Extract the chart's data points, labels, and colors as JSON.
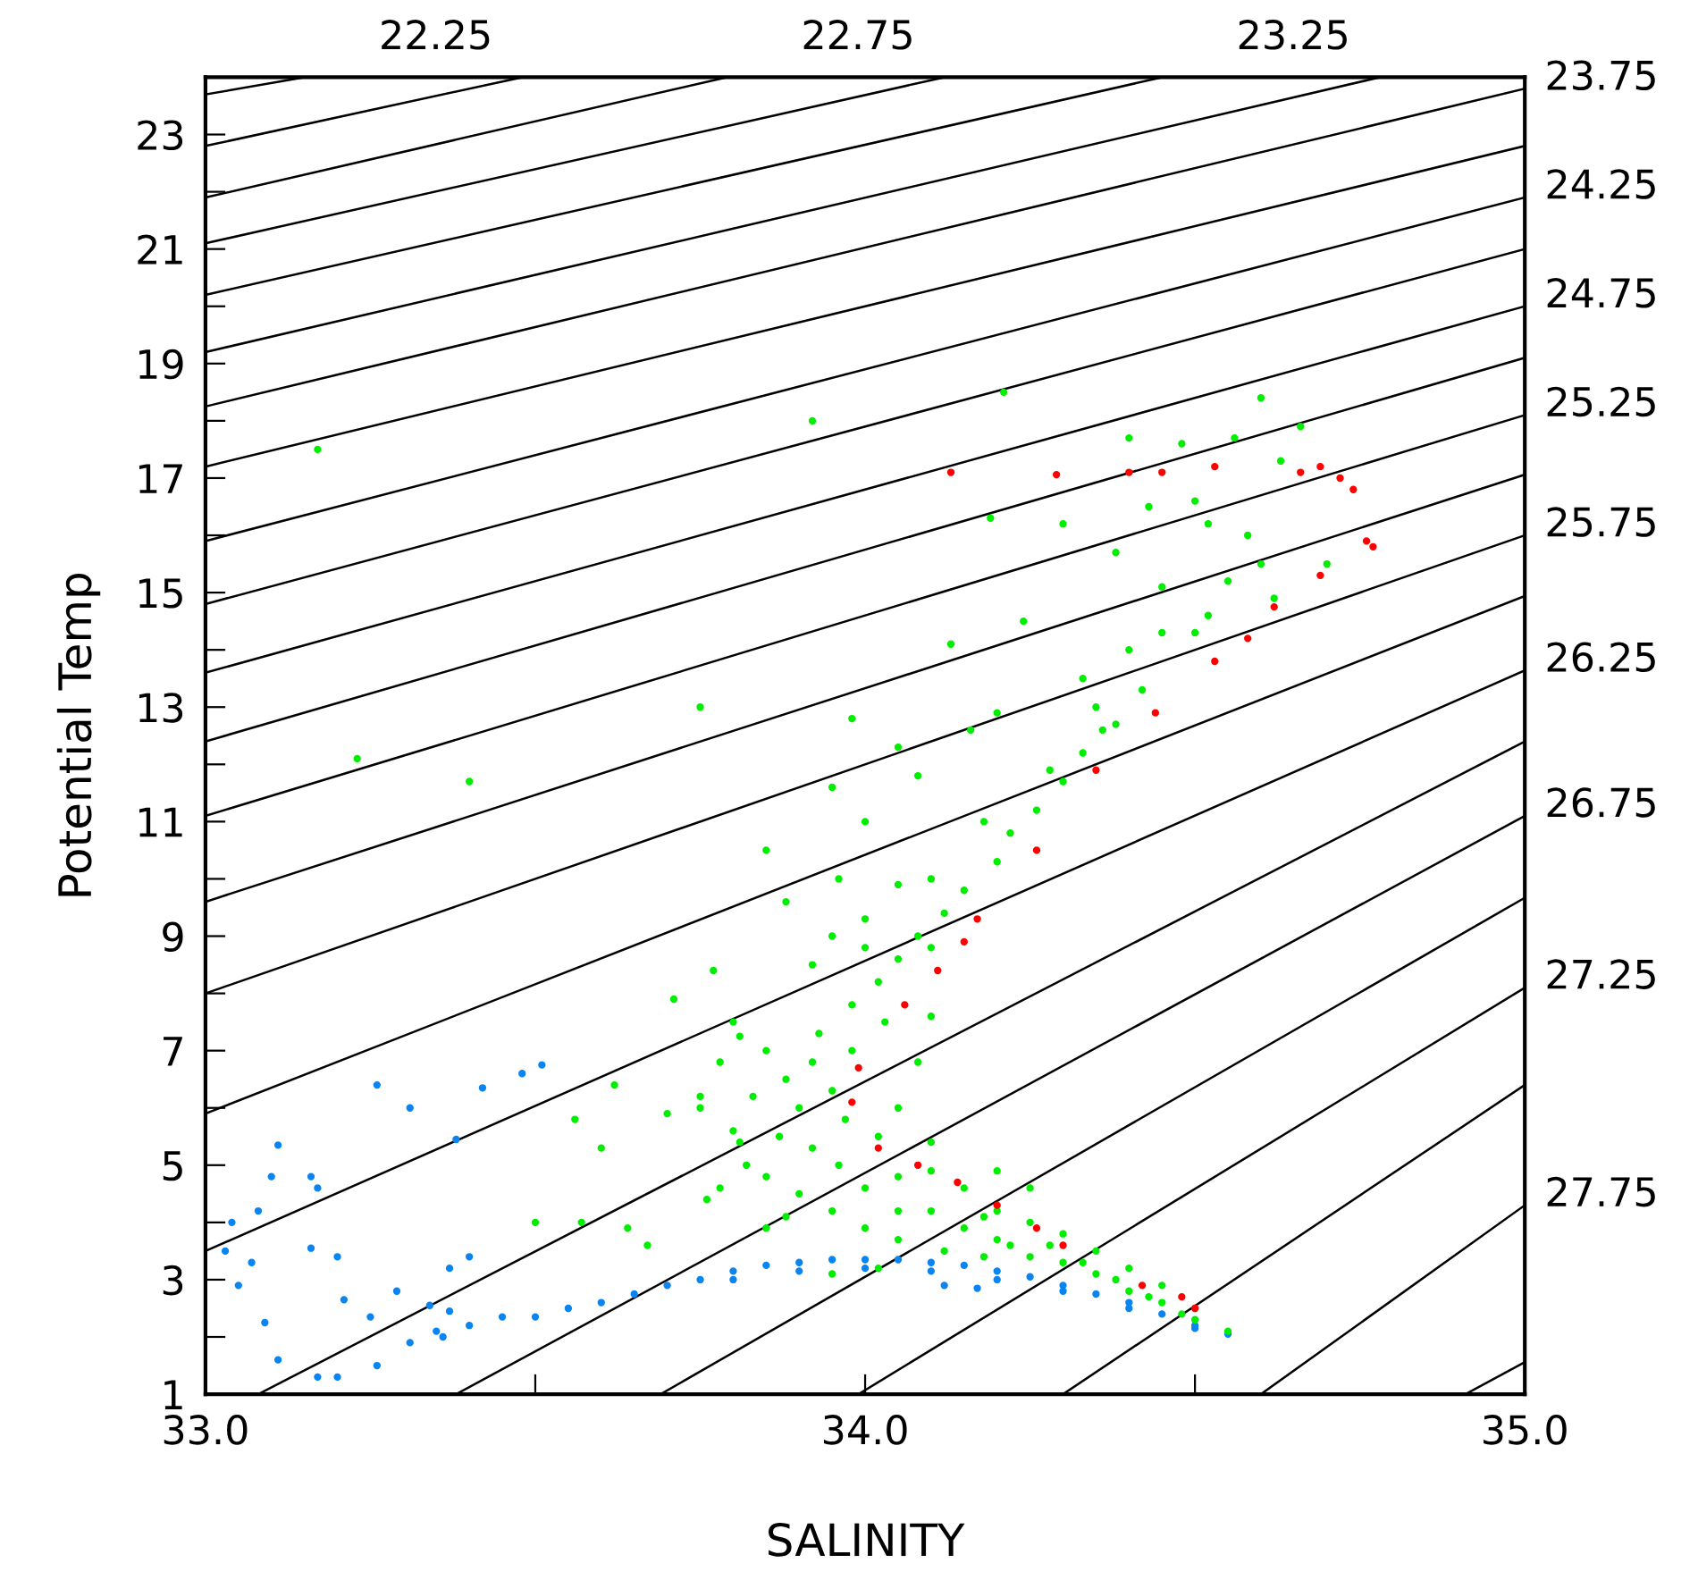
{
  "chart_data": {
    "type": "scatter",
    "xlabel": "SALINITY",
    "ylabel": "Potential Temp",
    "xlim": [
      33.0,
      35.0
    ],
    "ylim": [
      1,
      24
    ],
    "xticks": [
      {
        "value": 33.0,
        "label": "33.0"
      },
      {
        "value": 33.5,
        "label": null
      },
      {
        "value": 34.0,
        "label": "34.0"
      },
      {
        "value": 34.5,
        "label": null
      },
      {
        "value": 35.0,
        "label": "35.0"
      }
    ],
    "yticks": [
      1,
      {
        "value": 2,
        "label": null
      },
      3,
      {
        "value": 4,
        "label": null
      },
      5,
      {
        "value": 6,
        "label": null
      },
      7,
      {
        "value": 8,
        "label": null
      },
      9,
      {
        "value": 10,
        "label": null
      },
      11,
      {
        "value": 12,
        "label": null
      },
      13,
      {
        "value": 14,
        "label": null
      },
      15,
      {
        "value": 16,
        "label": null
      },
      17,
      {
        "value": 18,
        "label": null
      },
      19,
      {
        "value": 20,
        "label": null
      },
      21,
      {
        "value": 22,
        "label": null
      },
      23,
      {
        "value": 24,
        "label": null
      }
    ],
    "grid": false,
    "marker": "circle",
    "annotations": [
      {
        "text": "22.25",
        "x": 33.15,
        "y": 24
      },
      {
        "text": "22.75",
        "x": 33.79,
        "y": 24
      },
      {
        "text": "23.25",
        "x": 34.45,
        "y": 24
      },
      {
        "text": "23.75",
        "x": 35.0,
        "y": 23.8
      },
      {
        "text": "24.25",
        "x": 35.0,
        "y": 21.9
      },
      {
        "text": "24.75",
        "x": 35.0,
        "y": 20.0
      },
      {
        "text": "25.25",
        "x": 35.0,
        "y": 18.1
      },
      {
        "text": "25.75",
        "x": 35.0,
        "y": 16.0
      },
      {
        "text": "26.25",
        "x": 35.0,
        "y": 13.64
      },
      {
        "text": "26.75",
        "x": 35.0,
        "y": 11.1
      },
      {
        "text": "27.25",
        "x": 35.0,
        "y": 8.1
      },
      {
        "text": "27.75",
        "x": 35.0,
        "y": 4.3
      }
    ],
    "series": [
      {
        "type": "line",
        "color": "#000000",
        "marker": "none",
        "x": [
          33.0,
          33.15
        ],
        "values": [
          23.7,
          24
        ]
      },
      {
        "type": "line",
        "color": "#000000",
        "marker": "none",
        "x": [
          33.0,
          33.48
        ],
        "values": [
          22.8,
          24
        ]
      },
      {
        "type": "line",
        "color": "#000000",
        "marker": "none",
        "x": [
          33.0,
          33.79
        ],
        "values": [
          21.9,
          24
        ]
      },
      {
        "type": "line",
        "color": "#000000",
        "marker": "none",
        "x": [
          33.0,
          34.12
        ],
        "values": [
          21.1,
          24
        ]
      },
      {
        "type": "line",
        "color": "#000000",
        "marker": "none",
        "x": [
          33.0,
          34.45
        ],
        "values": [
          20.2,
          24
        ]
      },
      {
        "type": "line",
        "color": "#000000",
        "marker": "none",
        "x": [
          33.0,
          34.78
        ],
        "values": [
          19.2,
          24
        ]
      },
      {
        "type": "line",
        "color": "#000000",
        "marker": "none",
        "x": [
          33.0,
          35.0
        ],
        "values": [
          18.25,
          23.8
        ]
      },
      {
        "type": "line",
        "color": "#000000",
        "marker": "none",
        "x": [
          33.0,
          35.0
        ],
        "values": [
          17.2,
          22.8
        ]
      },
      {
        "type": "line",
        "color": "#000000",
        "marker": "none",
        "x": [
          33.0,
          35.0
        ],
        "values": [
          15.9,
          21.9
        ]
      },
      {
        "type": "line",
        "color": "#000000",
        "marker": "none",
        "x": [
          33.0,
          35.0
        ],
        "values": [
          14.8,
          21.0
        ]
      },
      {
        "type": "line",
        "color": "#000000",
        "marker": "none",
        "x": [
          33.0,
          35.0
        ],
        "values": [
          13.6,
          20.0
        ]
      },
      {
        "type": "line",
        "color": "#000000",
        "marker": "none",
        "x": [
          33.0,
          35.0
        ],
        "values": [
          12.4,
          19.1
        ]
      },
      {
        "type": "line",
        "color": "#000000",
        "marker": "none",
        "x": [
          33.0,
          35.0
        ],
        "values": [
          11.1,
          18.1
        ]
      },
      {
        "type": "line",
        "color": "#000000",
        "marker": "none",
        "x": [
          33.0,
          35.0
        ],
        "values": [
          9.6,
          17.06
        ]
      },
      {
        "type": "line",
        "color": "#000000",
        "marker": "none",
        "x": [
          33.0,
          35.0
        ],
        "values": [
          8.0,
          16.0
        ]
      },
      {
        "type": "line",
        "color": "#000000",
        "marker": "none",
        "x": [
          33.0,
          35.0
        ],
        "values": [
          5.9,
          14.94
        ]
      },
      {
        "type": "line",
        "color": "#000000",
        "marker": "none",
        "x": [
          33.0,
          35.0
        ],
        "values": [
          3.5,
          13.64
        ]
      },
      {
        "type": "line",
        "color": "#000000",
        "marker": "none",
        "x": [
          33.08,
          35.0
        ],
        "values": [
          1,
          12.4
        ]
      },
      {
        "type": "line",
        "color": "#000000",
        "marker": "none",
        "x": [
          33.38,
          35.0
        ],
        "values": [
          1,
          11.1
        ]
      },
      {
        "type": "line",
        "color": "#000000",
        "marker": "none",
        "x": [
          33.69,
          35.0
        ],
        "values": [
          1,
          9.67
        ]
      },
      {
        "type": "line",
        "color": "#000000",
        "marker": "none",
        "x": [
          33.99,
          35.0
        ],
        "values": [
          1,
          8.1
        ]
      },
      {
        "type": "line",
        "color": "#000000",
        "marker": "none",
        "x": [
          34.3,
          35.0
        ],
        "values": [
          1,
          6.4
        ]
      },
      {
        "type": "line",
        "color": "#000000",
        "marker": "none",
        "x": [
          34.6,
          35.0
        ],
        "values": [
          1,
          4.3
        ]
      },
      {
        "type": "line",
        "color": "#000000",
        "marker": "none",
        "x": [
          34.91,
          35.0
        ],
        "values": [
          1,
          1.56
        ]
      },
      {
        "type": "scatter",
        "color": "#0a84f0",
        "x": [
          33.04,
          33.11,
          33.1,
          33.16,
          33.17,
          33.08,
          33.26,
          33.31,
          33.38,
          33.42,
          33.48,
          33.51,
          33.03,
          33.05,
          33.07,
          33.09,
          33.11,
          33.17,
          33.2,
          33.26,
          33.16,
          33.2,
          33.21,
          33.29,
          33.25,
          33.31,
          33.4,
          33.37,
          33.34,
          33.36,
          33.37,
          33.4,
          33.45,
          33.35,
          33.5,
          33.55,
          33.6,
          33.65,
          33.7,
          33.75,
          33.8,
          33.85,
          33.9,
          33.95,
          34.0,
          34.05,
          34.1,
          34.15,
          34.2,
          34.25,
          34.3,
          34.35,
          34.4,
          34.45,
          34.5,
          34.55,
          33.8,
          33.9,
          34.0,
          34.1,
          34.2,
          34.3,
          34.4,
          34.5,
          34.12,
          34.17
        ],
        "values": [
          4.0,
          5.35,
          4.8,
          4.8,
          4.6,
          4.2,
          6.4,
          6.0,
          5.45,
          6.35,
          6.6,
          6.75,
          3.5,
          2.9,
          3.3,
          2.25,
          1.6,
          1.3,
          1.3,
          1.5,
          3.55,
          3.4,
          2.65,
          2.8,
          2.35,
          1.9,
          3.4,
          3.2,
          2.55,
          2.0,
          2.45,
          2.2,
          2.35,
          2.1,
          2.35,
          2.5,
          2.6,
          2.75,
          2.9,
          3.0,
          3.15,
          3.25,
          3.3,
          3.35,
          3.35,
          3.35,
          3.3,
          3.25,
          3.15,
          3.05,
          2.9,
          2.75,
          2.6,
          2.4,
          2.2,
          2.05,
          3.0,
          3.15,
          3.2,
          3.15,
          3.0,
          2.8,
          2.5,
          2.15,
          2.9,
          2.85
        ]
      },
      {
        "type": "scatter",
        "color": "#00ee00",
        "x": [
          33.17,
          33.92,
          34.21,
          33.23,
          33.4,
          33.75,
          33.98,
          34.13,
          34.19,
          34.6,
          34.56,
          34.48,
          34.4,
          34.43,
          34.5,
          34.52,
          34.58,
          34.63,
          34.66,
          34.38,
          34.3,
          34.45,
          34.55,
          34.6,
          34.24,
          34.33,
          34.05,
          34.08,
          33.95,
          34.0,
          34.16,
          34.2,
          34.35,
          34.45,
          34.52,
          34.62,
          34.7,
          34.4,
          34.5,
          34.42,
          34.38,
          34.33,
          34.3,
          34.26,
          34.22,
          34.2,
          34.15,
          34.12,
          34.08,
          34.05,
          34.02,
          33.98,
          34.1,
          34.18,
          34.28,
          34.36,
          34.0,
          34.05,
          33.95,
          33.92,
          34.1,
          34.0,
          33.96,
          33.88,
          33.85,
          33.8,
          33.85,
          33.88,
          33.83,
          33.9,
          33.95,
          33.93,
          33.98,
          33.87,
          33.92,
          33.96,
          33.85,
          33.9,
          33.95,
          34.0,
          34.02,
          34.05,
          34.08,
          34.03,
          34.1,
          33.78,
          33.75,
          33.8,
          33.82,
          33.78,
          33.88,
          34.0,
          34.05,
          33.92,
          33.97,
          33.7,
          33.75,
          33.81,
          33.85,
          33.76,
          33.71,
          33.77,
          33.81,
          33.5,
          33.56,
          33.62,
          33.6,
          33.57,
          33.64,
          33.67,
          34.1,
          34.1,
          34.15,
          34.2,
          34.25,
          34.3,
          34.35,
          34.4,
          34.45,
          34.5,
          34.55,
          34.1,
          34.15,
          34.2,
          34.25,
          34.3,
          34.35,
          34.4,
          34.45,
          34.5,
          34.05,
          34.12,
          34.18,
          34.22,
          34.28,
          34.33,
          34.38,
          34.43,
          34.48,
          34.05,
          34.18,
          34.02,
          33.95,
          34.2,
          34.25
        ],
        "values": [
          17.5,
          18.0,
          18.5,
          12.1,
          11.7,
          13.0,
          12.8,
          14.1,
          16.3,
          18.4,
          17.7,
          17.6,
          17.7,
          16.5,
          16.6,
          16.2,
          16.0,
          17.3,
          17.9,
          15.7,
          16.2,
          15.1,
          15.2,
          15.5,
          14.5,
          13.5,
          12.3,
          11.8,
          11.6,
          11.0,
          12.6,
          12.9,
          13.0,
          14.3,
          14.6,
          14.9,
          15.5,
          14.0,
          14.3,
          13.3,
          12.7,
          12.2,
          11.7,
          11.2,
          10.8,
          10.3,
          9.8,
          9.4,
          9.0,
          8.6,
          8.2,
          7.8,
          10.0,
          11.0,
          11.9,
          12.6,
          9.3,
          9.9,
          9.0,
          8.5,
          8.8,
          8.8,
          10.0,
          9.6,
          10.5,
          7.5,
          7.0,
          6.5,
          6.2,
          6.0,
          6.3,
          7.3,
          7.0,
          5.5,
          5.3,
          5.0,
          4.8,
          4.5,
          4.2,
          4.6,
          5.5,
          6.0,
          6.8,
          7.5,
          7.6,
          6.8,
          6.2,
          5.6,
          5.0,
          4.6,
          4.1,
          3.9,
          4.2,
          6.8,
          5.8,
          5.9,
          6.0,
          5.4,
          3.9,
          4.4,
          7.9,
          8.4,
          7.25,
          4.0,
          5.8,
          6.4,
          5.3,
          4.0,
          3.9,
          3.6,
          5.4,
          4.9,
          4.6,
          4.2,
          4.0,
          3.8,
          3.5,
          3.2,
          2.9,
          2.5,
          2.1,
          4.2,
          3.9,
          3.7,
          3.4,
          3.3,
          3.1,
          2.8,
          2.6,
          2.3,
          3.7,
          3.5,
          3.4,
          3.6,
          3.6,
          3.3,
          3.0,
          2.7,
          2.4,
          4.8,
          4.1,
          3.2,
          3.1,
          4.9,
          4.6
        ]
      },
      {
        "type": "scatter",
        "color": "#ff0000",
        "x": [
          34.13,
          34.29,
          34.4,
          34.45,
          34.53,
          34.69,
          34.77,
          34.74,
          34.72,
          34.66,
          34.76,
          34.69,
          34.62,
          34.53,
          34.44,
          34.35,
          34.26,
          34.17,
          34.15,
          34.11,
          34.06,
          33.99,
          33.98,
          34.02,
          34.08,
          34.14,
          34.26,
          34.42,
          34.5,
          34.2,
          34.3,
          34.48,
          34.58
        ],
        "values": [
          17.1,
          17.06,
          17.1,
          17.1,
          17.2,
          17.2,
          15.8,
          16.8,
          17.0,
          17.1,
          15.9,
          15.3,
          14.75,
          13.8,
          12.9,
          11.9,
          10.5,
          9.3,
          8.9,
          8.4,
          7.8,
          6.7,
          6.1,
          5.3,
          5.0,
          4.7,
          3.9,
          2.9,
          2.5,
          4.3,
          3.6,
          2.7,
          14.2
        ]
      }
    ]
  }
}
